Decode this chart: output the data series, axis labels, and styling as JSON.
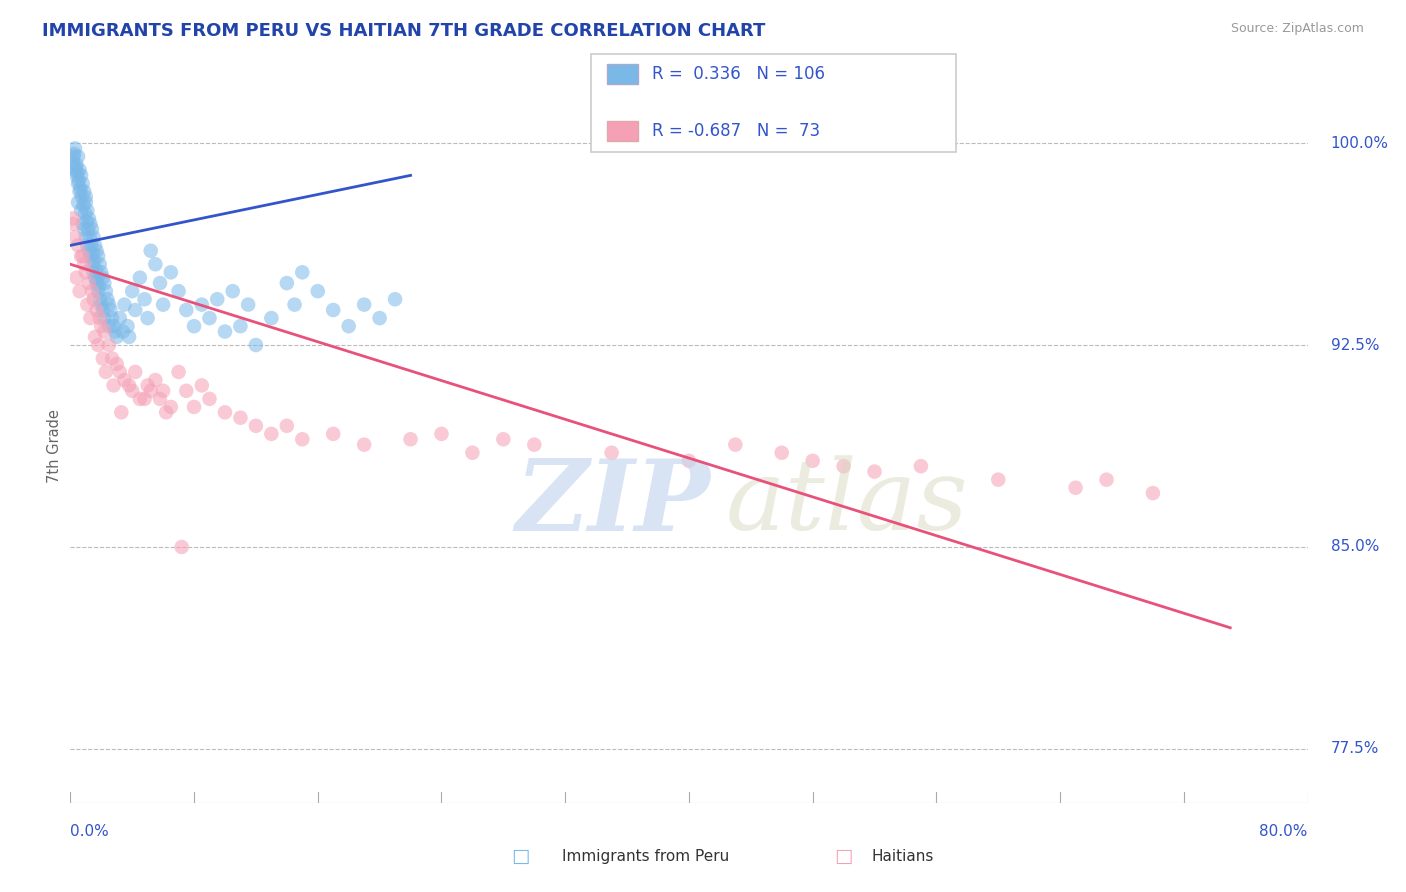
{
  "title": "IMMIGRANTS FROM PERU VS HAITIAN 7TH GRADE CORRELATION CHART",
  "source": "Source: ZipAtlas.com",
  "ylabel": "7th Grade",
  "xmin": 0.0,
  "xmax": 80.0,
  "ymin": 75.5,
  "ymax": 102.0,
  "blue_R": 0.336,
  "blue_N": 106,
  "pink_R": -0.687,
  "pink_N": 73,
  "blue_color": "#7AB8E8",
  "pink_color": "#F5A0B5",
  "blue_line_color": "#3355CC",
  "pink_line_color": "#E8527A",
  "title_color": "#2244AA",
  "source_color": "#999999",
  "ytick_positions": [
    77.5,
    85.0,
    92.5,
    100.0
  ],
  "ytick_labels": [
    "77.5%",
    "85.0%",
    "92.5%",
    "100.0%"
  ],
  "blue_trend_x": [
    0.0,
    22.0
  ],
  "blue_trend_y": [
    96.2,
    98.8
  ],
  "pink_trend_x": [
    0.0,
    75.0
  ],
  "pink_trend_y": [
    95.5,
    82.0
  ],
  "blue_x": [
    0.2,
    0.3,
    0.3,
    0.4,
    0.4,
    0.5,
    0.5,
    0.5,
    0.6,
    0.6,
    0.7,
    0.7,
    0.8,
    0.8,
    0.9,
    0.9,
    1.0,
    1.0,
    1.0,
    1.1,
    1.1,
    1.2,
    1.2,
    1.3,
    1.3,
    1.4,
    1.4,
    1.5,
    1.5,
    1.6,
    1.6,
    1.7,
    1.7,
    1.8,
    1.8,
    1.9,
    1.9,
    2.0,
    2.0,
    2.1,
    2.1,
    2.2,
    2.2,
    2.3,
    2.4,
    2.5,
    2.5,
    2.6,
    2.7,
    2.8,
    2.9,
    3.0,
    3.2,
    3.4,
    3.5,
    3.7,
    3.8,
    4.0,
    4.2,
    4.5,
    4.8,
    5.0,
    5.2,
    5.5,
    5.8,
    6.0,
    6.5,
    7.0,
    7.5,
    8.0,
    8.5,
    9.0,
    9.5,
    10.0,
    10.5,
    11.0,
    11.5,
    12.0,
    13.0,
    14.0,
    14.5,
    15.0,
    16.0,
    17.0,
    18.0,
    19.0,
    20.0,
    21.0,
    0.15,
    0.25,
    0.35,
    0.45,
    0.55,
    0.65,
    0.75,
    0.85,
    0.95,
    1.05,
    1.15,
    1.25,
    1.35,
    1.45,
    1.55,
    1.65,
    1.75,
    1.85
  ],
  "blue_y": [
    99.5,
    99.8,
    99.0,
    99.2,
    98.8,
    99.5,
    98.5,
    97.8,
    99.0,
    98.2,
    98.8,
    97.5,
    98.5,
    97.0,
    98.2,
    96.8,
    98.0,
    96.5,
    97.8,
    97.5,
    96.2,
    97.2,
    96.0,
    97.0,
    95.8,
    96.8,
    95.5,
    96.5,
    95.2,
    96.2,
    95.0,
    96.0,
    94.8,
    95.8,
    94.5,
    95.5,
    94.2,
    95.2,
    94.0,
    95.0,
    93.8,
    94.8,
    93.5,
    94.5,
    94.2,
    94.0,
    93.2,
    93.8,
    93.5,
    93.2,
    93.0,
    92.8,
    93.5,
    93.0,
    94.0,
    93.2,
    92.8,
    94.5,
    93.8,
    95.0,
    94.2,
    93.5,
    96.0,
    95.5,
    94.8,
    94.0,
    95.2,
    94.5,
    93.8,
    93.2,
    94.0,
    93.5,
    94.2,
    93.0,
    94.5,
    93.2,
    94.0,
    92.5,
    93.5,
    94.8,
    94.0,
    95.2,
    94.5,
    93.8,
    93.2,
    94.0,
    93.5,
    94.2,
    99.3,
    99.6,
    99.1,
    98.9,
    98.6,
    98.3,
    98.0,
    97.7,
    97.4,
    97.1,
    96.8,
    96.5,
    96.2,
    95.9,
    95.6,
    95.3,
    95.0,
    94.7
  ],
  "pink_x": [
    0.2,
    0.3,
    0.5,
    0.7,
    0.9,
    1.0,
    1.2,
    1.4,
    1.5,
    1.7,
    1.9,
    2.0,
    2.2,
    2.5,
    2.7,
    3.0,
    3.2,
    3.5,
    3.8,
    4.0,
    4.2,
    4.5,
    5.0,
    5.2,
    5.5,
    5.8,
    6.0,
    6.5,
    7.0,
    7.5,
    8.0,
    8.5,
    9.0,
    10.0,
    11.0,
    12.0,
    13.0,
    14.0,
    15.0,
    17.0,
    19.0,
    22.0,
    24.0,
    26.0,
    28.0,
    30.0,
    35.0,
    40.0,
    43.0,
    46.0,
    48.0,
    50.0,
    52.0,
    55.0,
    60.0,
    65.0,
    67.0,
    70.0,
    0.15,
    0.4,
    0.6,
    0.8,
    1.1,
    1.3,
    1.6,
    1.8,
    2.1,
    2.3,
    2.8,
    3.3,
    4.8,
    6.2,
    7.2
  ],
  "pink_y": [
    97.0,
    96.5,
    96.2,
    95.8,
    95.5,
    95.2,
    94.8,
    94.5,
    94.2,
    93.8,
    93.5,
    93.2,
    93.0,
    92.5,
    92.0,
    91.8,
    91.5,
    91.2,
    91.0,
    90.8,
    91.5,
    90.5,
    91.0,
    90.8,
    91.2,
    90.5,
    90.8,
    90.2,
    91.5,
    90.8,
    90.2,
    91.0,
    90.5,
    90.0,
    89.8,
    89.5,
    89.2,
    89.5,
    89.0,
    89.2,
    88.8,
    89.0,
    89.2,
    88.5,
    89.0,
    88.8,
    88.5,
    88.2,
    88.8,
    88.5,
    88.2,
    88.0,
    87.8,
    88.0,
    87.5,
    87.2,
    87.5,
    87.0,
    97.2,
    95.0,
    94.5,
    95.8,
    94.0,
    93.5,
    92.8,
    92.5,
    92.0,
    91.5,
    91.0,
    90.0,
    90.5,
    90.0,
    85.0
  ]
}
